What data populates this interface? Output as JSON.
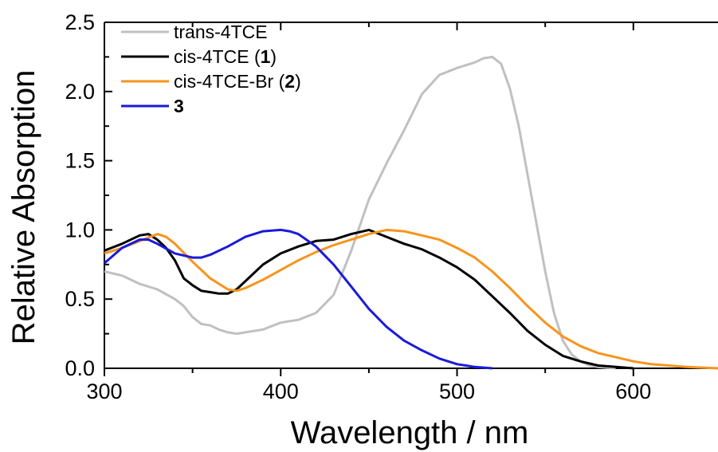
{
  "chart_data": {
    "type": "line",
    "xlabel": "Wavelength / nm",
    "ylabel": "Relative Absorption",
    "xlim": [
      300,
      648
    ],
    "ylim": [
      0,
      2.5
    ],
    "xticks": [
      "300",
      "400",
      "500",
      "600"
    ],
    "yticks": [
      "0.0",
      "0.5",
      "1.0",
      "1.5",
      "2.0",
      "2.5"
    ],
    "legend_position": "top-left",
    "grid": false,
    "series": [
      {
        "name": "trans-4TCE",
        "color": "#c0c0c0",
        "points": [
          [
            300,
            0.7
          ],
          [
            310,
            0.67
          ],
          [
            320,
            0.61
          ],
          [
            330,
            0.57
          ],
          [
            340,
            0.5
          ],
          [
            345,
            0.45
          ],
          [
            350,
            0.37
          ],
          [
            355,
            0.32
          ],
          [
            360,
            0.31
          ],
          [
            365,
            0.28
          ],
          [
            370,
            0.26
          ],
          [
            375,
            0.25
          ],
          [
            380,
            0.26
          ],
          [
            390,
            0.28
          ],
          [
            400,
            0.33
          ],
          [
            410,
            0.35
          ],
          [
            420,
            0.4
          ],
          [
            430,
            0.53
          ],
          [
            440,
            0.85
          ],
          [
            450,
            1.22
          ],
          [
            460,
            1.48
          ],
          [
            470,
            1.72
          ],
          [
            480,
            1.98
          ],
          [
            490,
            2.12
          ],
          [
            500,
            2.17
          ],
          [
            505,
            2.19
          ],
          [
            510,
            2.21
          ],
          [
            515,
            2.24
          ],
          [
            520,
            2.25
          ],
          [
            525,
            2.2
          ],
          [
            530,
            2.02
          ],
          [
            535,
            1.75
          ],
          [
            540,
            1.4
          ],
          [
            545,
            1.05
          ],
          [
            550,
            0.7
          ],
          [
            555,
            0.4
          ],
          [
            560,
            0.2
          ],
          [
            565,
            0.1
          ],
          [
            570,
            0.05
          ],
          [
            575,
            0.02
          ],
          [
            580,
            0.01
          ],
          [
            590,
            0.0
          ]
        ]
      },
      {
        "name": "cis-4TCE (1)",
        "name_parts": [
          "cis-4TCE (",
          "1",
          ")"
        ],
        "color": "#000000",
        "points": [
          [
            300,
            0.85
          ],
          [
            310,
            0.9
          ],
          [
            320,
            0.96
          ],
          [
            325,
            0.97
          ],
          [
            330,
            0.93
          ],
          [
            335,
            0.87
          ],
          [
            340,
            0.78
          ],
          [
            345,
            0.65
          ],
          [
            350,
            0.6
          ],
          [
            355,
            0.56
          ],
          [
            360,
            0.55
          ],
          [
            365,
            0.54
          ],
          [
            370,
            0.54
          ],
          [
            375,
            0.57
          ],
          [
            380,
            0.63
          ],
          [
            390,
            0.75
          ],
          [
            400,
            0.83
          ],
          [
            410,
            0.88
          ],
          [
            420,
            0.92
          ],
          [
            430,
            0.93
          ],
          [
            440,
            0.97
          ],
          [
            450,
            1.0
          ],
          [
            460,
            0.95
          ],
          [
            470,
            0.9
          ],
          [
            480,
            0.86
          ],
          [
            490,
            0.8
          ],
          [
            500,
            0.73
          ],
          [
            510,
            0.64
          ],
          [
            520,
            0.52
          ],
          [
            530,
            0.4
          ],
          [
            540,
            0.27
          ],
          [
            550,
            0.17
          ],
          [
            560,
            0.09
          ],
          [
            570,
            0.05
          ],
          [
            580,
            0.02
          ],
          [
            590,
            0.01
          ],
          [
            600,
            0.0
          ]
        ]
      },
      {
        "name": "cis-4TCE-Br (2)",
        "name_parts": [
          "cis-4TCE-Br (",
          "2",
          ")"
        ],
        "color": "#f7941d",
        "points": [
          [
            300,
            0.83
          ],
          [
            310,
            0.87
          ],
          [
            320,
            0.92
          ],
          [
            330,
            0.97
          ],
          [
            335,
            0.95
          ],
          [
            340,
            0.9
          ],
          [
            350,
            0.77
          ],
          [
            360,
            0.65
          ],
          [
            370,
            0.57
          ],
          [
            375,
            0.56
          ],
          [
            380,
            0.58
          ],
          [
            390,
            0.64
          ],
          [
            400,
            0.71
          ],
          [
            410,
            0.78
          ],
          [
            420,
            0.84
          ],
          [
            430,
            0.89
          ],
          [
            440,
            0.93
          ],
          [
            450,
            0.97
          ],
          [
            460,
            1.0
          ],
          [
            470,
            0.99
          ],
          [
            480,
            0.96
          ],
          [
            490,
            0.93
          ],
          [
            500,
            0.87
          ],
          [
            510,
            0.8
          ],
          [
            520,
            0.7
          ],
          [
            530,
            0.58
          ],
          [
            540,
            0.45
          ],
          [
            550,
            0.33
          ],
          [
            560,
            0.23
          ],
          [
            570,
            0.16
          ],
          [
            580,
            0.11
          ],
          [
            590,
            0.08
          ],
          [
            600,
            0.05
          ],
          [
            610,
            0.03
          ],
          [
            620,
            0.02
          ],
          [
            630,
            0.01
          ],
          [
            648,
            0.0
          ]
        ]
      },
      {
        "name": "3",
        "name_parts": [
          "",
          "3",
          ""
        ],
        "color": "#1a1adc",
        "points": [
          [
            300,
            0.76
          ],
          [
            310,
            0.87
          ],
          [
            320,
            0.93
          ],
          [
            325,
            0.93
          ],
          [
            330,
            0.9
          ],
          [
            340,
            0.83
          ],
          [
            350,
            0.8
          ],
          [
            355,
            0.8
          ],
          [
            360,
            0.82
          ],
          [
            370,
            0.88
          ],
          [
            380,
            0.95
          ],
          [
            390,
            0.99
          ],
          [
            400,
            1.0
          ],
          [
            405,
            0.99
          ],
          [
            410,
            0.97
          ],
          [
            420,
            0.88
          ],
          [
            430,
            0.75
          ],
          [
            440,
            0.59
          ],
          [
            450,
            0.43
          ],
          [
            460,
            0.3
          ],
          [
            470,
            0.2
          ],
          [
            480,
            0.13
          ],
          [
            490,
            0.07
          ],
          [
            500,
            0.03
          ],
          [
            505,
            0.02
          ],
          [
            510,
            0.01
          ],
          [
            520,
            0.0
          ]
        ]
      }
    ]
  }
}
